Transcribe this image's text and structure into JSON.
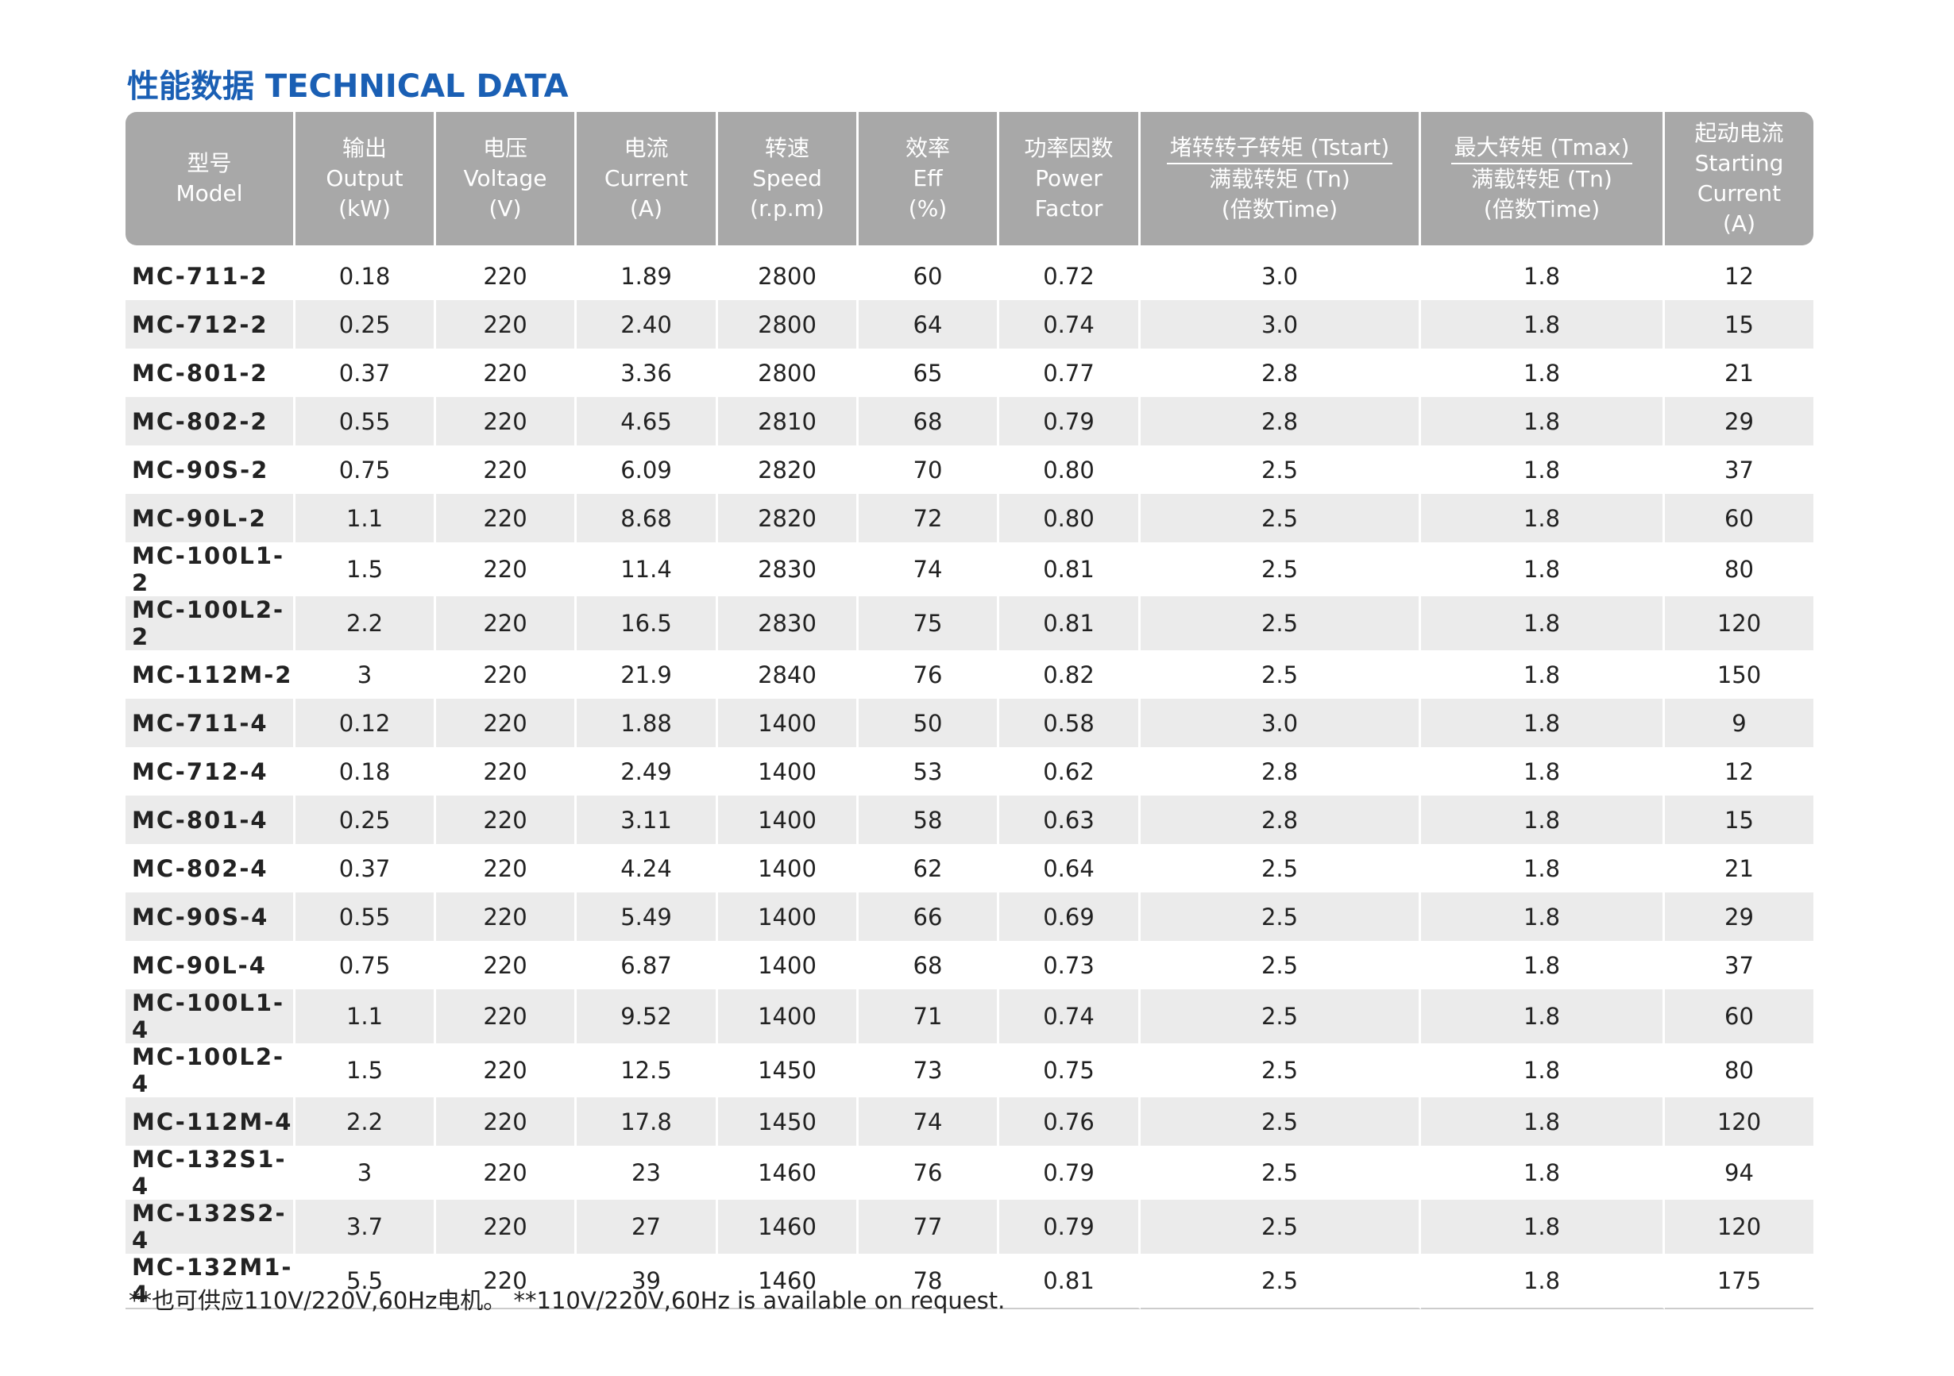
{
  "header": {
    "title": "性能数据 TECHNICAL DATA"
  },
  "table": {
    "columns": [
      [
        "型号",
        "Model"
      ],
      [
        "输出",
        "Output",
        "(kW)"
      ],
      [
        "电压",
        "Voltage",
        "(V)"
      ],
      [
        "电流",
        "Current",
        "(A)"
      ],
      [
        "转速",
        "Speed",
        "(r.p.m)"
      ],
      [
        "效率",
        "Eff",
        "(%)"
      ],
      [
        "功率因数",
        "Power",
        "Factor"
      ],
      [
        "堵转转子转矩 (Tstart)",
        "满载转矩 (Tn)",
        "(倍数Time)"
      ],
      [
        "最大转矩 (Tmax)",
        "满载转矩 (Tn)",
        "(倍数Time)"
      ],
      [
        "起动电流",
        "Starting",
        "Current",
        "(A)"
      ]
    ],
    "rows": [
      [
        "MC-711-2",
        "0.18",
        "220",
        "1.89",
        "2800",
        "60",
        "0.72",
        "3.0",
        "1.8",
        "12"
      ],
      [
        "MC-712-2",
        "0.25",
        "220",
        "2.40",
        "2800",
        "64",
        "0.74",
        "3.0",
        "1.8",
        "15"
      ],
      [
        "MC-801-2",
        "0.37",
        "220",
        "3.36",
        "2800",
        "65",
        "0.77",
        "2.8",
        "1.8",
        "21"
      ],
      [
        "MC-802-2",
        "0.55",
        "220",
        "4.65",
        "2810",
        "68",
        "0.79",
        "2.8",
        "1.8",
        "29"
      ],
      [
        "MC-90S-2",
        "0.75",
        "220",
        "6.09",
        "2820",
        "70",
        "0.80",
        "2.5",
        "1.8",
        "37"
      ],
      [
        "MC-90L-2",
        "1.1",
        "220",
        "8.68",
        "2820",
        "72",
        "0.80",
        "2.5",
        "1.8",
        "60"
      ],
      [
        "MC-100L1-2",
        "1.5",
        "220",
        "11.4",
        "2830",
        "74",
        "0.81",
        "2.5",
        "1.8",
        "80"
      ],
      [
        "MC-100L2-2",
        "2.2",
        "220",
        "16.5",
        "2830",
        "75",
        "0.81",
        "2.5",
        "1.8",
        "120"
      ],
      [
        "MC-112M-2",
        "3",
        "220",
        "21.9",
        "2840",
        "76",
        "0.82",
        "2.5",
        "1.8",
        "150"
      ],
      [
        "MC-711-4",
        "0.12",
        "220",
        "1.88",
        "1400",
        "50",
        "0.58",
        "3.0",
        "1.8",
        "9"
      ],
      [
        "MC-712-4",
        "0.18",
        "220",
        "2.49",
        "1400",
        "53",
        "0.62",
        "2.8",
        "1.8",
        "12"
      ],
      [
        "MC-801-4",
        "0.25",
        "220",
        "3.11",
        "1400",
        "58",
        "0.63",
        "2.8",
        "1.8",
        "15"
      ],
      [
        "MC-802-4",
        "0.37",
        "220",
        "4.24",
        "1400",
        "62",
        "0.64",
        "2.5",
        "1.8",
        "21"
      ],
      [
        "MC-90S-4",
        "0.55",
        "220",
        "5.49",
        "1400",
        "66",
        "0.69",
        "2.5",
        "1.8",
        "29"
      ],
      [
        "MC-90L-4",
        "0.75",
        "220",
        "6.87",
        "1400",
        "68",
        "0.73",
        "2.5",
        "1.8",
        "37"
      ],
      [
        "MC-100L1-4",
        "1.1",
        "220",
        "9.52",
        "1400",
        "71",
        "0.74",
        "2.5",
        "1.8",
        "60"
      ],
      [
        "MC-100L2-4",
        "1.5",
        "220",
        "12.5",
        "1450",
        "73",
        "0.75",
        "2.5",
        "1.8",
        "80"
      ],
      [
        "MC-112M-4",
        "2.2",
        "220",
        "17.8",
        "1450",
        "74",
        "0.76",
        "2.5",
        "1.8",
        "120"
      ],
      [
        "MC-132S1-4",
        "3",
        "220",
        "23",
        "1460",
        "76",
        "0.79",
        "2.5",
        "1.8",
        "94"
      ],
      [
        "MC-132S2-4",
        "3.7",
        "220",
        "27",
        "1460",
        "77",
        "0.79",
        "2.5",
        "1.8",
        "120"
      ],
      [
        "MC-132M1-4",
        "5.5",
        "220",
        "39",
        "1460",
        "78",
        "0.81",
        "2.5",
        "1.8",
        "175"
      ]
    ]
  },
  "footnote": "**也可供应110V/220V,60Hz电机。 **110V/220V,60Hz is available on request."
}
